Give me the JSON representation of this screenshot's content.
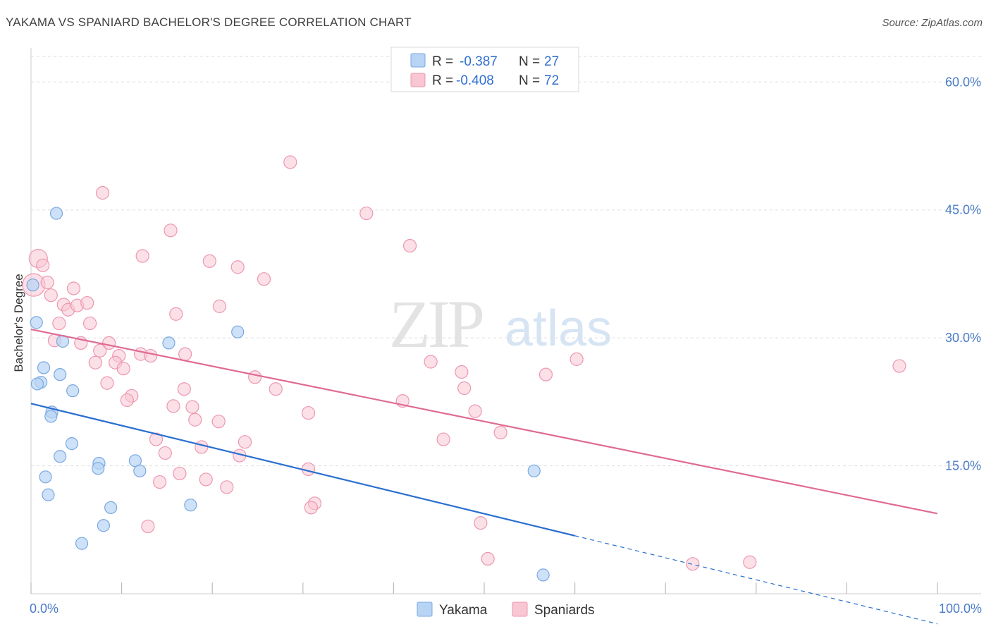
{
  "header": {
    "title": "YAKAMA VS SPANIARD BACHELOR'S DEGREE CORRELATION CHART",
    "source": "Source: ZipAtlas.com"
  },
  "watermark": {
    "zip": "ZIP",
    "atlas": "atlas"
  },
  "colors": {
    "yakama_fill": "#b8d4f5",
    "yakama_stroke": "#7aa8e0",
    "yakama_line": "#2a6fd0",
    "spaniard_fill": "#f9c6d4",
    "spaniard_stroke": "#ec97b0",
    "spaniard_line": "#e06a93",
    "tick_text": "#4a7cc7",
    "grid": "#dddddd"
  },
  "legend": {
    "r_label": "R =",
    "n_label": "N =",
    "yakama": {
      "r": "-0.387",
      "n": "27"
    },
    "spaniard": {
      "r": "-0.408",
      "n": "72"
    }
  },
  "chart_data": {
    "type": "scatter",
    "title": "YAKAMA VS SPANIARD BACHELOR'S DEGREE CORRELATION CHART",
    "xlabel": "",
    "ylabel": "Bachelor's Degree",
    "xlim": [
      0,
      100
    ],
    "ylim": [
      0,
      63
    ],
    "x_tick_labels": [
      "0.0%",
      "100.0%"
    ],
    "y_ticks": [
      15,
      30,
      45,
      60
    ],
    "y_tick_labels": [
      "15.0%",
      "30.0%",
      "45.0%",
      "60.0%"
    ],
    "grid": "horizontal dashed",
    "legend_position": "top-center",
    "series": [
      {
        "name": "Yakama",
        "r": -0.387,
        "n": 27,
        "trend": {
          "x0": 0,
          "y0": 22.3,
          "x1": 60,
          "y1": 6.8,
          "dashed_to_x": 100
        },
        "points": [
          [
            0.2,
            36.2
          ],
          [
            2.8,
            44.6
          ],
          [
            0.6,
            31.8
          ],
          [
            3.5,
            29.6
          ],
          [
            1.4,
            26.5
          ],
          [
            3.2,
            25.7
          ],
          [
            1.1,
            24.8
          ],
          [
            0.7,
            24.6
          ],
          [
            4.6,
            23.8
          ],
          [
            2.3,
            21.3
          ],
          [
            2.2,
            20.8
          ],
          [
            4.5,
            17.6
          ],
          [
            3.2,
            16.1
          ],
          [
            7.5,
            15.3
          ],
          [
            7.4,
            14.7
          ],
          [
            11.5,
            15.6
          ],
          [
            12.0,
            14.4
          ],
          [
            1.6,
            13.7
          ],
          [
            1.9,
            11.6
          ],
          [
            8.8,
            10.1
          ],
          [
            17.6,
            10.4
          ],
          [
            8.0,
            8.0
          ],
          [
            5.6,
            5.9
          ],
          [
            15.2,
            29.4
          ],
          [
            22.8,
            30.7
          ],
          [
            55.5,
            14.4
          ],
          [
            56.5,
            2.2
          ]
        ]
      },
      {
        "name": "Spaniards",
        "r": -0.408,
        "n": 72,
        "trend": {
          "x0": 0,
          "y0": 31.0,
          "x1": 100,
          "y1": 9.4
        },
        "points": [
          [
            0.3,
            36.2
          ],
          [
            0.8,
            39.3
          ],
          [
            1.3,
            38.5
          ],
          [
            1.8,
            36.5
          ],
          [
            2.2,
            35.0
          ],
          [
            3.6,
            33.9
          ],
          [
            4.1,
            33.3
          ],
          [
            4.7,
            35.8
          ],
          [
            5.1,
            33.8
          ],
          [
            6.2,
            34.1
          ],
          [
            3.1,
            31.7
          ],
          [
            6.5,
            31.7
          ],
          [
            2.6,
            29.7
          ],
          [
            5.5,
            29.4
          ],
          [
            8.6,
            29.4
          ],
          [
            7.6,
            28.5
          ],
          [
            9.7,
            27.9
          ],
          [
            12.1,
            28.1
          ],
          [
            13.2,
            27.9
          ],
          [
            7.1,
            27.1
          ],
          [
            9.3,
            27.1
          ],
          [
            10.2,
            26.4
          ],
          [
            8.4,
            24.7
          ],
          [
            11.1,
            23.2
          ],
          [
            10.6,
            22.7
          ],
          [
            17.0,
            28.1
          ],
          [
            16.9,
            24.0
          ],
          [
            15.7,
            22.0
          ],
          [
            17.8,
            21.9
          ],
          [
            18.1,
            20.4
          ],
          [
            20.7,
            20.2
          ],
          [
            13.8,
            18.1
          ],
          [
            14.8,
            16.5
          ],
          [
            18.8,
            17.2
          ],
          [
            23.0,
            16.2
          ],
          [
            16.4,
            14.1
          ],
          [
            14.2,
            13.1
          ],
          [
            19.3,
            13.4
          ],
          [
            21.6,
            12.5
          ],
          [
            12.9,
            7.9
          ],
          [
            7.9,
            47.0
          ],
          [
            15.4,
            42.6
          ],
          [
            12.3,
            39.6
          ],
          [
            19.7,
            39.0
          ],
          [
            22.8,
            38.3
          ],
          [
            25.7,
            36.9
          ],
          [
            20.8,
            33.7
          ],
          [
            16.0,
            32.8
          ],
          [
            24.7,
            25.4
          ],
          [
            27.0,
            24.0
          ],
          [
            23.6,
            17.8
          ],
          [
            30.6,
            21.2
          ],
          [
            30.6,
            14.6
          ],
          [
            31.3,
            10.6
          ],
          [
            30.9,
            10.1
          ],
          [
            28.6,
            50.6
          ],
          [
            37.0,
            44.6
          ],
          [
            41.8,
            40.8
          ],
          [
            41.0,
            22.6
          ],
          [
            44.1,
            27.2
          ],
          [
            45.5,
            18.1
          ],
          [
            47.5,
            26.0
          ],
          [
            47.8,
            24.1
          ],
          [
            49.0,
            21.4
          ],
          [
            49.6,
            8.3
          ],
          [
            50.4,
            4.1
          ],
          [
            51.8,
            18.9
          ],
          [
            56.8,
            25.7
          ],
          [
            60.2,
            27.5
          ],
          [
            73.0,
            3.5
          ],
          [
            79.3,
            3.7
          ],
          [
            95.8,
            26.7
          ]
        ]
      }
    ]
  },
  "bottom_legend": {
    "yakama": "Yakama",
    "spaniards": "Spaniards"
  }
}
